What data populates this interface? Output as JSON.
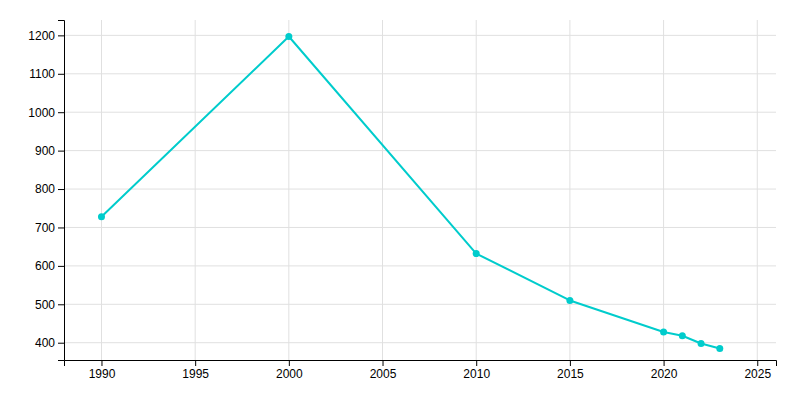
{
  "chart_data": {
    "type": "line",
    "x": [
      1990,
      2000,
      2010,
      2015,
      2020,
      2021,
      2022,
      2023
    ],
    "values": [
      728,
      1197,
      632,
      510,
      428,
      418,
      398,
      385
    ],
    "color": "#00CCCC",
    "marker": "circle",
    "xlim": [
      1988,
      2026
    ],
    "ylim": [
      355,
      1240
    ],
    "xticks": [
      1990,
      1995,
      2000,
      2005,
      2010,
      2015,
      2020,
      2025
    ],
    "yticks": [
      400,
      500,
      600,
      700,
      800,
      900,
      1000,
      1100,
      1200
    ],
    "grid": true
  }
}
